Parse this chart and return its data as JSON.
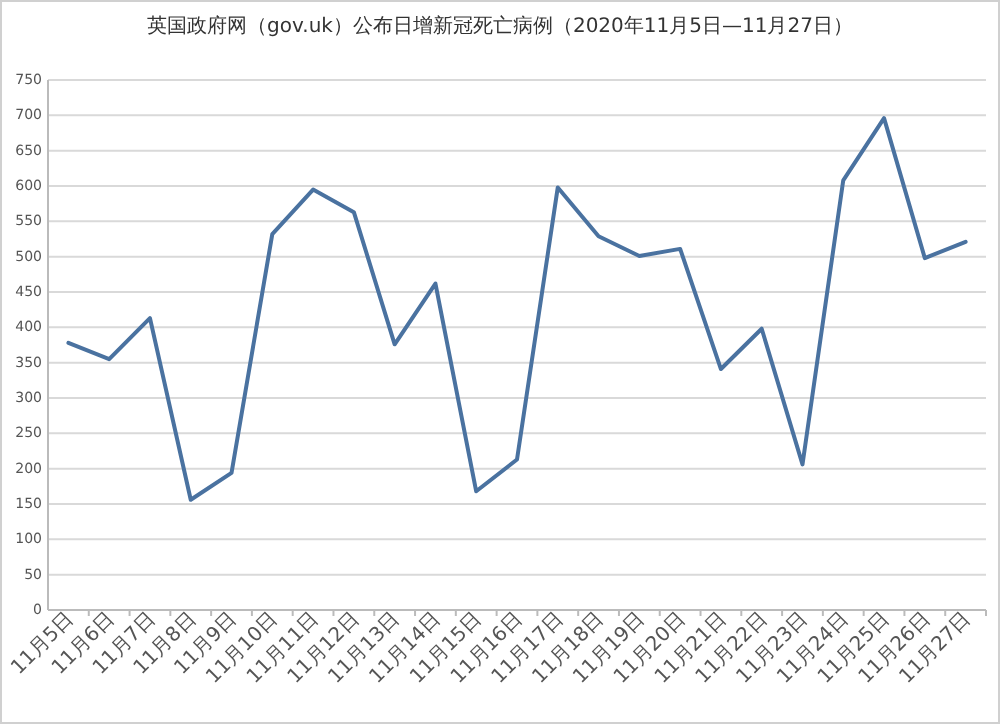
{
  "chart_data": {
    "type": "line",
    "title": "英国政府网（gov.uk）公布日增新冠死亡病例（2020年11月5日—11月27日）",
    "categories": [
      "11月5日",
      "11月6日",
      "11月7日",
      "11月8日",
      "11月9日",
      "11月10日",
      "11月11日",
      "11月12日",
      "11月13日",
      "11月14日",
      "11月15日",
      "11月16日",
      "11月17日",
      "11月18日",
      "11月19日",
      "11月20日",
      "11月21日",
      "11月22日",
      "11月23日",
      "11月24日",
      "11月25日",
      "11月26日",
      "11月27日"
    ],
    "series": [
      {
        "color": "#4a72a0",
        "values": [
          378,
          355,
          413,
          156,
          194,
          532,
          595,
          563,
          376,
          462,
          168,
          213,
          598,
          529,
          501,
          511,
          341,
          398,
          206,
          608,
          696,
          498,
          521
        ]
      }
    ],
    "ylim": [
      0,
      750
    ],
    "yticks": [
      0,
      50,
      100,
      150,
      200,
      250,
      300,
      350,
      400,
      450,
      500,
      550,
      600,
      650,
      700,
      750
    ],
    "grid": "y",
    "marker": "none",
    "line_style": "solid"
  }
}
